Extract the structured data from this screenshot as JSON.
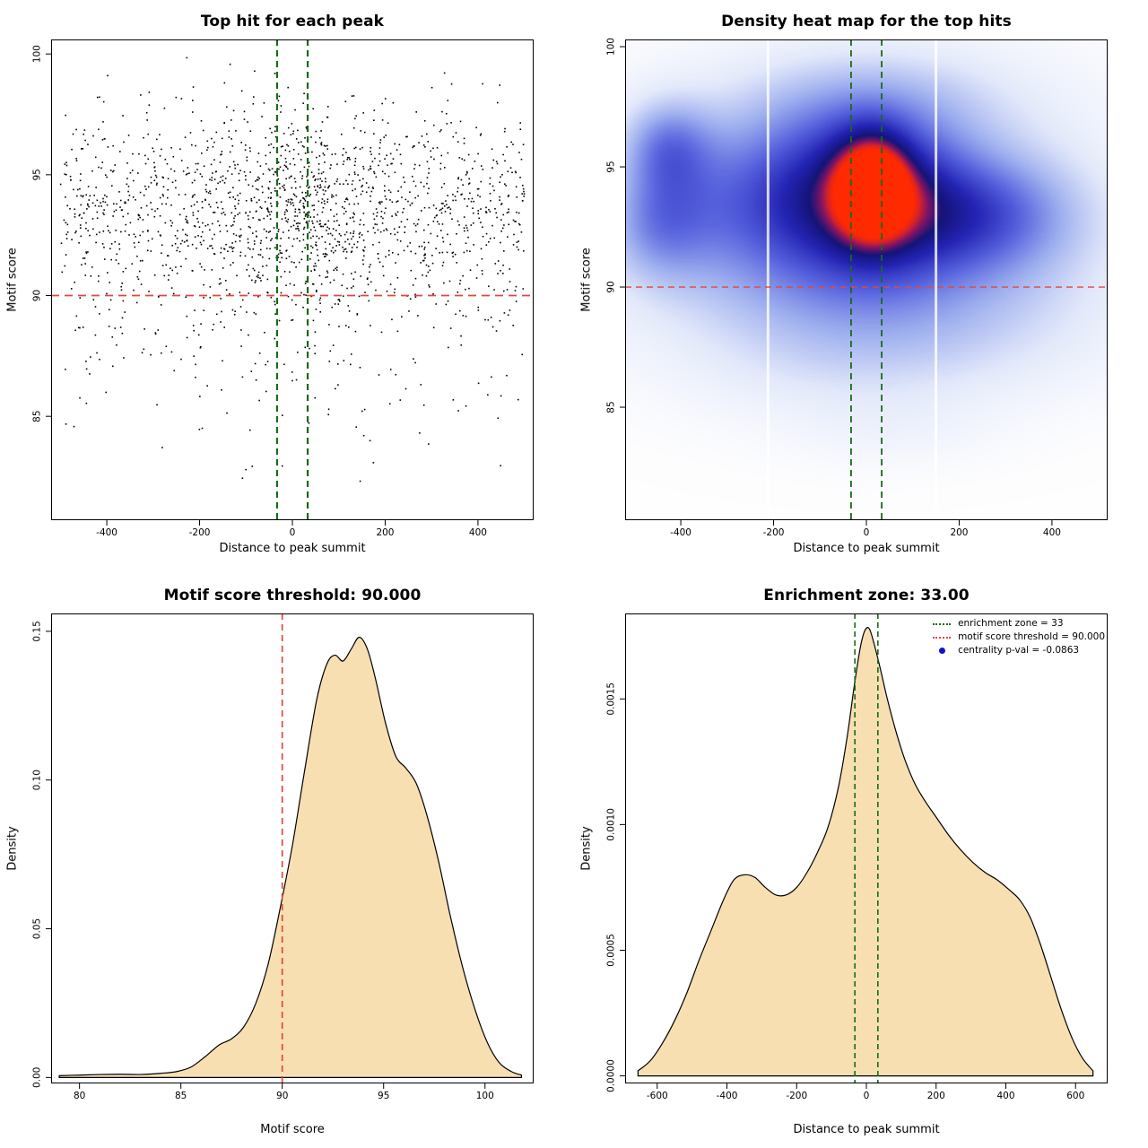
{
  "page": {
    "background": "#ffffff",
    "text_color": "#000000"
  },
  "chart_data": [
    {
      "type": "scatter",
      "title": "Top hit for each peak",
      "xlabel": "Distance to peak summit",
      "ylabel": "Motif score",
      "xlim": [
        -520,
        520
      ],
      "ylim": [
        80.7,
        100.6
      ],
      "xticks": [
        -400,
        -200,
        0,
        200,
        400
      ],
      "xtick_labels": [
        "-400",
        "-200",
        "0",
        "200",
        "400"
      ],
      "yticks": [
        85,
        90,
        95,
        100
      ],
      "ytick_labels": [
        "85",
        "90",
        "95",
        "100"
      ],
      "point_color": "#000000",
      "point_count": 1900,
      "seed": 42,
      "x_range": [
        -500,
        500
      ],
      "central_cluster": {
        "weight": 0.18,
        "mean": 30,
        "sd": 95
      },
      "y_mixture": [
        {
          "weight": 0.88,
          "mean": 93.6,
          "sd": 2.1
        },
        {
          "weight": 0.12,
          "mean": 88.5,
          "sd": 2.6
        }
      ],
      "hline": {
        "y": 90,
        "color": "#e0483c",
        "dash": [
          9,
          6
        ],
        "width": 1.8
      },
      "vlines": [
        {
          "x": -33,
          "color": "#176b17",
          "dash": [
            7,
            5
          ],
          "width": 2.2
        },
        {
          "x": 33,
          "color": "#176b17",
          "dash": [
            7,
            5
          ],
          "width": 2.2
        }
      ]
    },
    {
      "type": "heatmap",
      "title": "Density heat map for the top hits",
      "xlabel": "Distance to peak summit",
      "ylabel": "Motif score",
      "xlim": [
        -520,
        520
      ],
      "ylim": [
        80.3,
        100.3
      ],
      "xticks": [
        -400,
        -200,
        0,
        200,
        400
      ],
      "xtick_labels": [
        "-400",
        "-200",
        "0",
        "200",
        "400"
      ],
      "yticks": [
        85,
        90,
        95,
        100
      ],
      "ytick_labels": [
        "85",
        "90",
        "95",
        "100"
      ],
      "colormap": [
        {
          "t": 0.0,
          "c": "#ffffff"
        },
        {
          "t": 0.16,
          "c": "#e4eafb"
        },
        {
          "t": 0.34,
          "c": "#9daeef"
        },
        {
          "t": 0.52,
          "c": "#5560dd"
        },
        {
          "t": 0.68,
          "c": "#2424b4"
        },
        {
          "t": 0.8,
          "c": "#141478"
        },
        {
          "t": 0.88,
          "c": "#831563"
        },
        {
          "t": 0.94,
          "c": "#d8232a"
        },
        {
          "t": 1.0,
          "c": "#ff2a00"
        }
      ],
      "hotspot": {
        "x": 15,
        "y": 94.1
      },
      "components": [
        {
          "x": 15,
          "y": 94.2,
          "sx": 55,
          "sy": 1.5,
          "a": 0.5
        },
        {
          "x": 15,
          "y": 93.8,
          "sx": 130,
          "sy": 2.3,
          "a": 0.38
        },
        {
          "x": 40,
          "y": 93.5,
          "sx": 260,
          "sy": 3.2,
          "a": 0.22
        },
        {
          "x": 255,
          "y": 93.0,
          "sx": 150,
          "sy": 1.7,
          "a": 0.3
        },
        {
          "x": -140,
          "y": 94.0,
          "sx": 150,
          "sy": 2.6,
          "a": 0.2
        },
        {
          "x": -430,
          "y": 95.9,
          "sx": 70,
          "sy": 1.4,
          "a": 0.3
        },
        {
          "x": -450,
          "y": 92.7,
          "sx": 80,
          "sy": 1.7,
          "a": 0.27
        },
        {
          "x": -300,
          "y": 93.5,
          "sx": 120,
          "sy": 2.2,
          "a": 0.14
        },
        {
          "x": 30,
          "y": 97.9,
          "sx": 210,
          "sy": 1.5,
          "a": 0.12
        },
        {
          "x": 0,
          "y": 89.5,
          "sx": 360,
          "sy": 2.1,
          "a": 0.15
        },
        {
          "x": 150,
          "y": 87.3,
          "sx": 260,
          "sy": 1.8,
          "a": 0.07
        },
        {
          "x": -120,
          "y": 86.3,
          "sx": 220,
          "sy": 1.6,
          "a": 0.05
        },
        {
          "x": 0,
          "y": 93.5,
          "sx": 470,
          "sy": 5.2,
          "a": 0.11
        },
        {
          "x": 60,
          "y": 84.0,
          "sx": 150,
          "sy": 1.1,
          "a": 0.05
        }
      ],
      "white_stripes_x": [
        -212,
        150
      ],
      "hline": {
        "y": 90,
        "color": "#e0483c",
        "dash": [
          7,
          5
        ],
        "width": 1.4
      },
      "vlines": [
        {
          "x": -33,
          "color": "#176b17",
          "dash": [
            7,
            5
          ],
          "width": 1.8
        },
        {
          "x": 33,
          "color": "#176b17",
          "dash": [
            7,
            5
          ],
          "width": 1.8
        }
      ]
    },
    {
      "type": "density",
      "title": "Motif score threshold: 90.000",
      "xlabel": "Motif score",
      "ylabel": "Density",
      "xlim": [
        78.6,
        102.4
      ],
      "ylim": [
        -0.002,
        0.156
      ],
      "xticks": [
        80,
        85,
        90,
        95,
        100
      ],
      "xtick_labels": [
        "80",
        "85",
        "90",
        "95",
        "100"
      ],
      "yticks": [
        0,
        0.05,
        0.1,
        0.15
      ],
      "ytick_labels": [
        "0.00",
        "0.05",
        "0.10",
        "0.15"
      ],
      "fill": "#f8dfb2",
      "stroke": "#000000",
      "curve": [
        [
          79.0,
          0.0006
        ],
        [
          80.0,
          0.0008
        ],
        [
          81.0,
          0.001
        ],
        [
          82.0,
          0.0011
        ],
        [
          83.0,
          0.001
        ],
        [
          84.0,
          0.0014
        ],
        [
          84.8,
          0.002
        ],
        [
          85.5,
          0.0035
        ],
        [
          86.2,
          0.007
        ],
        [
          86.9,
          0.011
        ],
        [
          87.5,
          0.013
        ],
        [
          88.1,
          0.017
        ],
        [
          88.7,
          0.025
        ],
        [
          89.3,
          0.038
        ],
        [
          89.9,
          0.057
        ],
        [
          90.5,
          0.078
        ],
        [
          91.1,
          0.103
        ],
        [
          91.7,
          0.127
        ],
        [
          92.2,
          0.139
        ],
        [
          92.6,
          0.142
        ],
        [
          93.0,
          0.14
        ],
        [
          93.4,
          0.144
        ],
        [
          93.8,
          0.148
        ],
        [
          94.2,
          0.144
        ],
        [
          94.6,
          0.134
        ],
        [
          95.1,
          0.119
        ],
        [
          95.6,
          0.108
        ],
        [
          96.1,
          0.104
        ],
        [
          96.6,
          0.099
        ],
        [
          97.1,
          0.089
        ],
        [
          97.7,
          0.073
        ],
        [
          98.3,
          0.054
        ],
        [
          98.9,
          0.037
        ],
        [
          99.5,
          0.023
        ],
        [
          100.1,
          0.012
        ],
        [
          100.7,
          0.005
        ],
        [
          101.3,
          0.002
        ],
        [
          101.8,
          0.0008
        ]
      ],
      "vlines": [
        {
          "x": 90,
          "color": "#e0483c",
          "dash": [
            7,
            5
          ],
          "width": 1.7
        }
      ]
    },
    {
      "type": "density",
      "title": "Enrichment zone: 33.00",
      "xlabel": "Distance to peak summit",
      "ylabel": "Density",
      "xlim": [
        -692,
        692
      ],
      "ylim": [
        -3e-05,
        0.00184
      ],
      "xticks": [
        -600,
        -400,
        -200,
        0,
        200,
        400,
        600
      ],
      "xtick_labels": [
        "-600",
        "-400",
        "-200",
        "0",
        "200",
        "400",
        "600"
      ],
      "yticks": [
        0,
        0.0005,
        0.001,
        0.0015
      ],
      "ytick_labels": [
        "0.0000",
        "0.0005",
        "0.0010",
        "0.0015"
      ],
      "fill": "#f8dfb2",
      "stroke": "#000000",
      "curve": [
        [
          -655,
          2e-05
        ],
        [
          -620,
          6e-05
        ],
        [
          -585,
          0.00013
        ],
        [
          -550,
          0.00022
        ],
        [
          -515,
          0.00033
        ],
        [
          -480,
          0.00046
        ],
        [
          -445,
          0.00058
        ],
        [
          -410,
          0.0007
        ],
        [
          -380,
          0.00078
        ],
        [
          -350,
          0.0008
        ],
        [
          -320,
          0.00079
        ],
        [
          -290,
          0.00075
        ],
        [
          -260,
          0.00072
        ],
        [
          -230,
          0.00072
        ],
        [
          -200,
          0.00075
        ],
        [
          -170,
          0.00081
        ],
        [
          -140,
          0.00089
        ],
        [
          -110,
          0.00099
        ],
        [
          -80,
          0.00115
        ],
        [
          -55,
          0.00135
        ],
        [
          -35,
          0.00155
        ],
        [
          -18,
          0.0017
        ],
        [
          -5,
          0.00177
        ],
        [
          8,
          0.00178
        ],
        [
          22,
          0.00172
        ],
        [
          40,
          0.00162
        ],
        [
          60,
          0.0015
        ],
        [
          85,
          0.00137
        ],
        [
          110,
          0.00126
        ],
        [
          140,
          0.00116
        ],
        [
          170,
          0.00109
        ],
        [
          200,
          0.00103
        ],
        [
          235,
          0.00096
        ],
        [
          270,
          0.0009
        ],
        [
          305,
          0.00085
        ],
        [
          340,
          0.00081
        ],
        [
          375,
          0.00078
        ],
        [
          410,
          0.00074
        ],
        [
          440,
          0.0007
        ],
        [
          470,
          0.00063
        ],
        [
          500,
          0.00052
        ],
        [
          530,
          0.00039
        ],
        [
          560,
          0.00026
        ],
        [
          590,
          0.00015
        ],
        [
          620,
          7e-05
        ],
        [
          650,
          2e-05
        ]
      ],
      "vlines": [
        {
          "x": -33,
          "color": "#176b17",
          "dash": [
            6,
            4
          ],
          "width": 1.6
        },
        {
          "x": 33,
          "color": "#176b17",
          "dash": [
            6,
            4
          ],
          "width": 1.6
        }
      ],
      "legend": {
        "position": "top-right",
        "items": [
          {
            "marker": "dotted-line",
            "color": "#176b17",
            "label": "enrichment zone = 33"
          },
          {
            "marker": "dotted-line",
            "color": "#e0483c",
            "label": "motif score threshold = 90.000"
          },
          {
            "marker": "dot",
            "color": "#1111cc",
            "label": "centrality p-val = -0.0863"
          }
        ]
      }
    }
  ]
}
